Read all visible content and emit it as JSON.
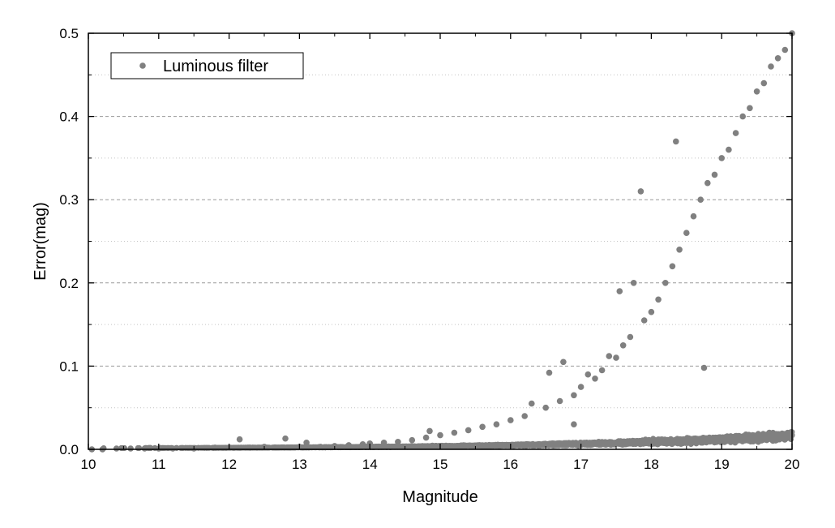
{
  "chart_data": {
    "type": "scatter",
    "title": "",
    "xlabel": "Magnitude",
    "ylabel": "Error(mag)",
    "xlim": [
      10,
      20
    ],
    "ylim": [
      0.0,
      0.5
    ],
    "x_ticks": [
      10,
      11,
      12,
      13,
      14,
      15,
      16,
      17,
      18,
      19,
      20
    ],
    "x_tick_labels": [
      "10",
      "11",
      "12",
      "13",
      "14",
      "15",
      "16",
      "17",
      "18",
      "19",
      "20"
    ],
    "y_ticks": [
      0.0,
      0.1,
      0.2,
      0.3,
      0.4,
      0.5
    ],
    "y_tick_labels": [
      "0.0",
      "0.1",
      "0.2",
      "0.3",
      "0.4",
      "0.5"
    ],
    "grid": {
      "horizontal": true,
      "vertical": false,
      "major_style": "dashed",
      "minor_style": "dotted"
    },
    "legend": {
      "position": "top-left",
      "entries": [
        "Luminous filter"
      ]
    },
    "marker_color": "#808080",
    "series": [
      {
        "name": "Luminous filter",
        "color": "#808080",
        "points": [
          [
            10.05,
            0.0
          ],
          [
            10.2,
            0.0
          ],
          [
            10.4,
            0.001
          ],
          [
            10.6,
            0.001
          ],
          [
            10.8,
            0.001
          ],
          [
            11.0,
            0.001
          ],
          [
            11.2,
            0.001
          ],
          [
            11.5,
            0.001
          ],
          [
            11.8,
            0.002
          ],
          [
            12.0,
            0.002
          ],
          [
            12.15,
            0.012
          ],
          [
            12.3,
            0.002
          ],
          [
            12.5,
            0.003
          ],
          [
            12.8,
            0.013
          ],
          [
            13.0,
            0.003
          ],
          [
            13.1,
            0.008
          ],
          [
            13.3,
            0.003
          ],
          [
            13.5,
            0.004
          ],
          [
            13.7,
            0.005
          ],
          [
            13.9,
            0.006
          ],
          [
            14.0,
            0.007
          ],
          [
            14.2,
            0.008
          ],
          [
            14.4,
            0.009
          ],
          [
            14.6,
            0.011
          ],
          [
            14.8,
            0.014
          ],
          [
            14.85,
            0.022
          ],
          [
            15.0,
            0.017
          ],
          [
            15.2,
            0.02
          ],
          [
            15.4,
            0.023
          ],
          [
            15.6,
            0.027
          ],
          [
            15.8,
            0.03
          ],
          [
            16.0,
            0.035
          ],
          [
            16.2,
            0.04
          ],
          [
            16.3,
            0.055
          ],
          [
            16.5,
            0.05
          ],
          [
            16.55,
            0.092
          ],
          [
            16.7,
            0.058
          ],
          [
            16.75,
            0.105
          ],
          [
            16.9,
            0.065
          ],
          [
            16.9,
            0.03
          ],
          [
            17.0,
            0.075
          ],
          [
            17.1,
            0.09
          ],
          [
            17.2,
            0.085
          ],
          [
            17.3,
            0.095
          ],
          [
            17.4,
            0.112
          ],
          [
            17.5,
            0.11
          ],
          [
            17.55,
            0.19
          ],
          [
            17.6,
            0.125
          ],
          [
            17.7,
            0.135
          ],
          [
            17.75,
            0.2
          ],
          [
            17.85,
            0.31
          ],
          [
            17.9,
            0.155
          ],
          [
            18.0,
            0.165
          ],
          [
            18.1,
            0.18
          ],
          [
            18.2,
            0.2
          ],
          [
            18.3,
            0.22
          ],
          [
            18.35,
            0.37
          ],
          [
            18.4,
            0.24
          ],
          [
            18.5,
            0.26
          ],
          [
            18.6,
            0.28
          ],
          [
            18.7,
            0.3
          ],
          [
            18.75,
            0.098
          ],
          [
            18.8,
            0.32
          ],
          [
            18.9,
            0.33
          ],
          [
            19.0,
            0.35
          ],
          [
            19.1,
            0.36
          ],
          [
            19.2,
            0.38
          ],
          [
            19.3,
            0.4
          ],
          [
            19.4,
            0.41
          ],
          [
            19.5,
            0.43
          ],
          [
            19.6,
            0.44
          ],
          [
            19.7,
            0.46
          ],
          [
            19.8,
            0.47
          ],
          [
            19.9,
            0.48
          ],
          [
            20.0,
            0.5
          ]
        ]
      }
    ]
  }
}
